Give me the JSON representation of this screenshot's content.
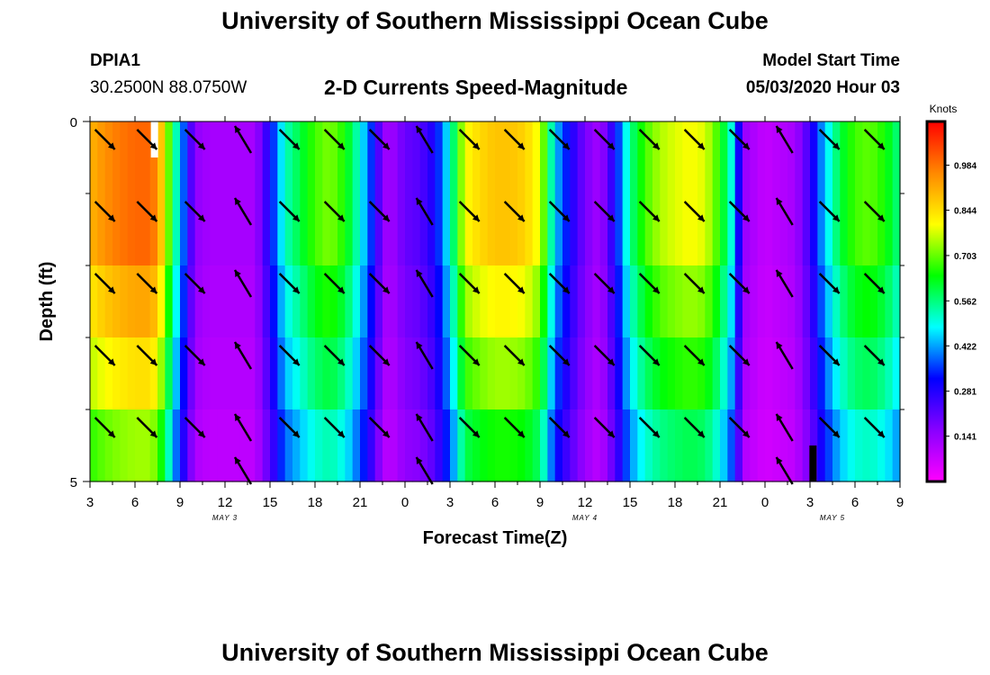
{
  "header": {
    "title": "University of Southern Mississippi Ocean Cube",
    "station": "DPIA1",
    "coords": "30.2500N 88.0750W",
    "subtitle": "2-D Currents Speed-Magnitude",
    "model_label": "Model Start Time",
    "model_time": "05/03/2020 Hour 03"
  },
  "footer": {
    "title": "University of Southern Mississippi Ocean Cube"
  },
  "chart_data": {
    "type": "heatmap",
    "title": "2-D Currents Speed-Magnitude",
    "xlabel": "Forecast Time(Z)",
    "ylabel": "Depth (ft)",
    "xlim": [
      3,
      57
    ],
    "ylim": [
      5,
      0
    ],
    "x_tick_labels": [
      "3",
      "6",
      "9",
      "12",
      "15",
      "18",
      "21",
      "0",
      "3",
      "6",
      "9",
      "12",
      "15",
      "18",
      "21",
      "0",
      "3",
      "6",
      "9"
    ],
    "x_tick_hours": [
      3,
      6,
      9,
      12,
      15,
      18,
      21,
      24,
      27,
      30,
      33,
      36,
      39,
      42,
      45,
      48,
      51,
      54,
      57
    ],
    "y_tick_labels": [
      "0",
      "5"
    ],
    "y_tick_values": [
      0,
      5
    ],
    "date_labels": [
      {
        "text": "MAY 3",
        "hour": 12
      },
      {
        "text": "MAY 4",
        "hour": 36
      },
      {
        "text": "MAY 5",
        "hour": 52.5
      }
    ],
    "colorbar": {
      "unit": "Knots",
      "tick_labels": [
        "0.984",
        "0.844",
        "0.703",
        "0.562",
        "0.422",
        "0.281",
        "0.141"
      ],
      "tick_values": [
        0.984,
        0.844,
        0.703,
        0.562,
        0.422,
        0.281,
        0.141
      ],
      "range": [
        0.0,
        1.12
      ],
      "colors": [
        "#ff00ff",
        "#8800ff",
        "#0000ff",
        "#00ffff",
        "#00ff00",
        "#ffff00",
        "#ff8800",
        "#ff0000"
      ]
    },
    "depth_layers": [
      0,
      1,
      2,
      3,
      4,
      5
    ],
    "time_speed_profile": {
      "hours": [
        3,
        4,
        5,
        6,
        7,
        7.5,
        8,
        8.5,
        9,
        9.5,
        10,
        11,
        12,
        13,
        14,
        15,
        16,
        17,
        18,
        19,
        20,
        21,
        22,
        22.5,
        23,
        24,
        25,
        26,
        27,
        27.5,
        28,
        29,
        30,
        31,
        32,
        33,
        33.5,
        34,
        35,
        36,
        37,
        38,
        39,
        40,
        41,
        42,
        43,
        44,
        45,
        46,
        46.5,
        47,
        48,
        49,
        50,
        51,
        52,
        53,
        54,
        55,
        56,
        57
      ],
      "surface": [
        0.9,
        0.95,
        0.98,
        1.0,
        1.0,
        0.95,
        0.8,
        0.6,
        0.45,
        0.3,
        0.15,
        0.12,
        0.12,
        0.12,
        0.12,
        0.3,
        0.52,
        0.6,
        0.68,
        0.72,
        0.65,
        0.5,
        0.3,
        0.15,
        0.12,
        0.2,
        0.22,
        0.3,
        0.5,
        0.65,
        0.8,
        0.85,
        0.88,
        0.88,
        0.86,
        0.78,
        0.62,
        0.45,
        0.3,
        0.18,
        0.12,
        0.3,
        0.55,
        0.68,
        0.75,
        0.78,
        0.8,
        0.78,
        0.66,
        0.45,
        0.15,
        0.12,
        0.08,
        0.1,
        0.12,
        0.25,
        0.45,
        0.6,
        0.68,
        0.7,
        0.65,
        0.55
      ]
    },
    "layer_scale": [
      1.0,
      1.0,
      0.92,
      0.84,
      0.74,
      0.55
    ],
    "arrow_rows_depth": [
      0.25,
      1.25,
      2.25,
      3.25,
      4.25,
      4.85
    ],
    "arrow_columns_hour": [
      4,
      6.8,
      10,
      13.2,
      16.3,
      19.3,
      22.3,
      25.3,
      28.3,
      31.3,
      34.3,
      37.3,
      40.3,
      43.3,
      46.3,
      49.3,
      52.3,
      55.3
    ],
    "arrow_direction": {
      "ebb": "SE",
      "flood": "NNW"
    },
    "arrow_flood_hours": [
      13.2,
      25.3,
      49.3
    ],
    "special_marks": [
      {
        "type": "missing",
        "color": "#ffffff",
        "hour": 7.3,
        "depth": 0
      },
      {
        "type": "missing",
        "color": "#000000",
        "hour": 51.2,
        "depth": 4.5
      }
    ]
  }
}
